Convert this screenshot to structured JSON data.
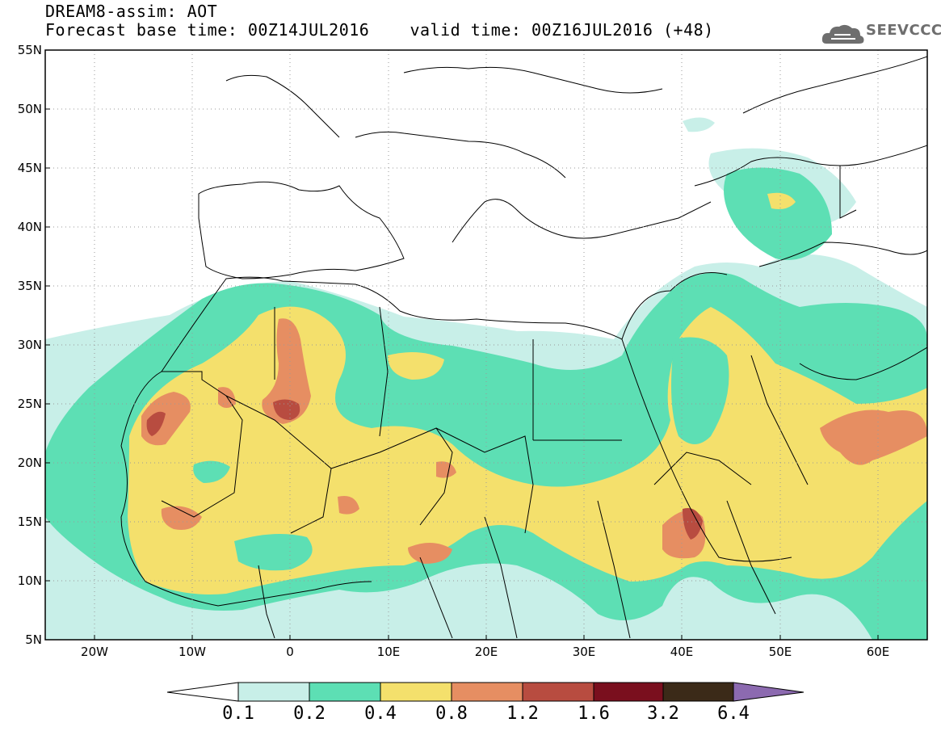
{
  "header": {
    "title_line1": "DREAM8-assim: AOT",
    "title_line2": "Forecast base time: 00Z14JUL2016    valid time: 00Z16JUL2016 (+48)",
    "logo_text": "SEEVCCC"
  },
  "map": {
    "lat_labels": [
      "55N",
      "50N",
      "45N",
      "40N",
      "35N",
      "30N",
      "25N",
      "20N",
      "15N",
      "10N",
      "5N"
    ],
    "lon_labels": [
      "20W",
      "10W",
      "0",
      "10E",
      "20E",
      "30E",
      "40E",
      "50E",
      "60E"
    ],
    "colors": {
      "c1": "#c8efe8",
      "c2": "#5ddfb4",
      "c3": "#f4e06c",
      "c4": "#e68e62",
      "c5": "#b84c40",
      "c6": "#7a0f1e",
      "c7": "#3b2a18",
      "c8": "#8c6ab0"
    }
  },
  "colorbar": {
    "labels": [
      "0.1",
      "0.2",
      "0.4",
      "0.8",
      "1.2",
      "1.6",
      "3.2",
      "6.4"
    ]
  }
}
